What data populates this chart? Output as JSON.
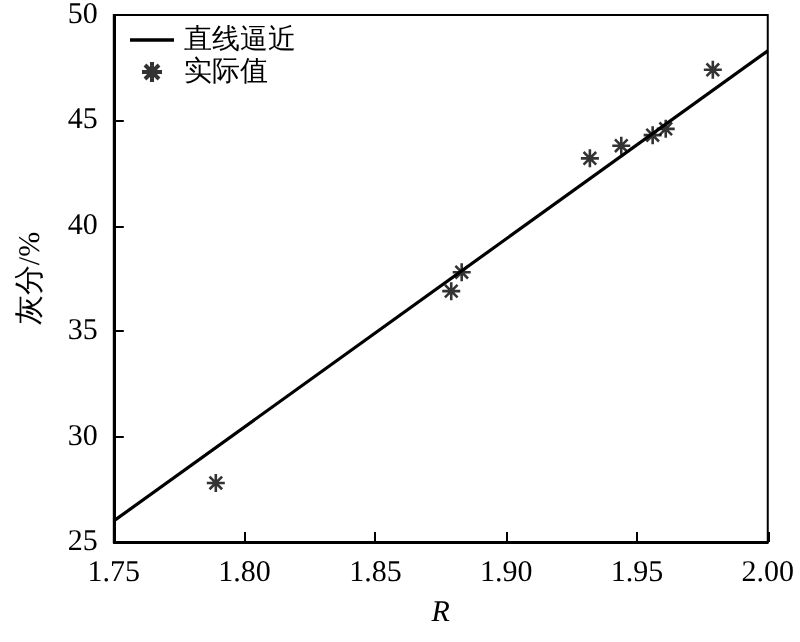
{
  "chart_data": {
    "type": "scatter",
    "xlabel": "R",
    "ylabel": "灰分/%",
    "xlim": [
      1.75,
      2.0
    ],
    "xticks": [
      {
        "value": 1.75,
        "label": "1.75"
      },
      {
        "value": 1.8,
        "label": "1.80"
      },
      {
        "value": 1.85,
        "label": "1.85"
      },
      {
        "value": 1.9,
        "label": "1.90"
      },
      {
        "value": 1.95,
        "label": "1.95"
      },
      {
        "value": 2.0,
        "label": "2.00"
      }
    ],
    "ylim": [
      25,
      50
    ],
    "yticks": [
      25,
      30,
      35,
      40,
      45,
      50
    ],
    "grid": false,
    "legend": "top left",
    "series": [
      {
        "name": "直线逼近",
        "type": "line",
        "color": "#000000",
        "marker": "none",
        "line_style": "solid",
        "x": [
          1.75,
          2.0
        ],
        "values": [
          26.0,
          48.3
        ]
      },
      {
        "name": "实际值",
        "type": "scatter",
        "color": "#000000",
        "marker": "cross",
        "x": [
          1.789,
          1.879,
          1.883,
          1.932,
          1.944,
          1.956,
          1.961,
          1.979
        ],
        "values": [
          27.8,
          36.9,
          37.8,
          43.2,
          43.8,
          44.3,
          44.6,
          47.4
        ]
      }
    ]
  }
}
